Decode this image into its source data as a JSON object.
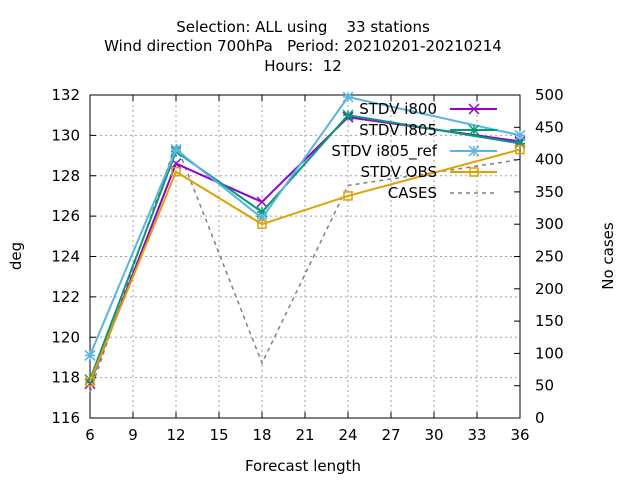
{
  "chart_data": {
    "type": "line",
    "title_lines": [
      "Selection: ALL using    33 stations",
      "Wind direction 700hPa   Period: 20210201-20210214",
      "Hours:  12"
    ],
    "xlabel": "Forecast length",
    "ylabel": "deg",
    "y2label": "No cases",
    "x": [
      6,
      12,
      18,
      24,
      36
    ],
    "xticks": [
      6,
      9,
      12,
      15,
      18,
      21,
      24,
      27,
      30,
      33,
      36
    ],
    "xlim": [
      6,
      36
    ],
    "ylim": [
      116,
      132
    ],
    "yticks": [
      116,
      118,
      120,
      122,
      124,
      126,
      128,
      130,
      132
    ],
    "y2lim": [
      0,
      500
    ],
    "y2ticks": [
      0,
      50,
      100,
      150,
      200,
      250,
      300,
      350,
      400,
      450,
      500
    ],
    "grid": true,
    "legend_position": "top-right",
    "series": [
      {
        "name": "STDV i800",
        "axis": "y",
        "color": "#9400d3",
        "marker": "x",
        "dash": "",
        "values": [
          117.7,
          128.6,
          126.7,
          130.9,
          129.7
        ]
      },
      {
        "name": "STDV i805",
        "axis": "y",
        "color": "#009e73",
        "marker": "star",
        "dash": "",
        "values": [
          117.9,
          129.2,
          126.2,
          131.0,
          129.6
        ]
      },
      {
        "name": "STDV i805_ref",
        "axis": "y",
        "color": "#56b4e9",
        "marker": "star",
        "dash": "",
        "values": [
          119.1,
          129.3,
          125.9,
          131.9,
          130.0
        ]
      },
      {
        "name": "STDV OBS",
        "axis": "y",
        "color": "#e69f00",
        "marker": "box",
        "dash": "",
        "values": [
          117.8,
          128.2,
          125.6,
          127.0,
          129.3
        ]
      },
      {
        "name": "CASES",
        "axis": "y2",
        "color": "#808080",
        "marker": "",
        "dash": "4,4",
        "values": [
          40,
          425,
          85,
          360,
          400
        ]
      }
    ]
  }
}
